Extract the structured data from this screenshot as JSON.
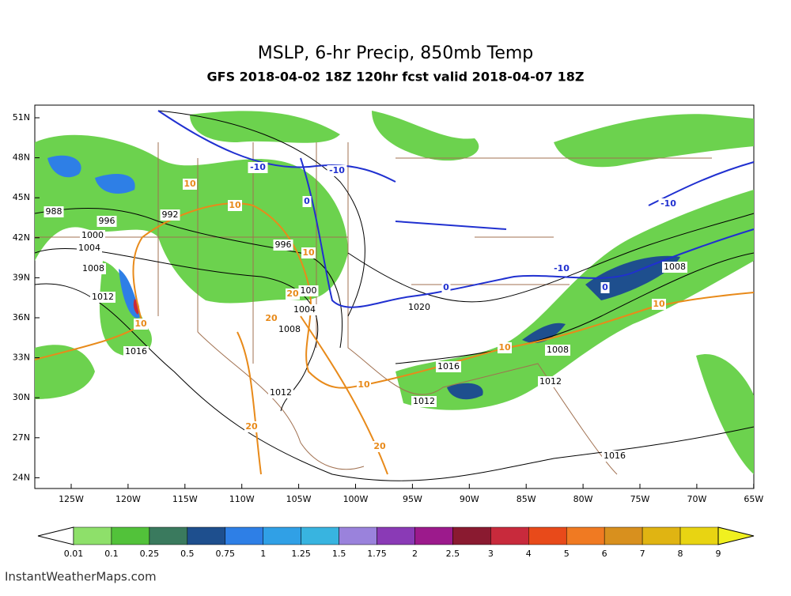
{
  "header": {
    "title": "MSLP, 6-hr Precip, 850mb Temp",
    "subtitle": "GFS 2018-04-02 18Z 120hr fcst valid 2018-04-07 18Z"
  },
  "map": {
    "lat_labels": [
      "51N",
      "48N",
      "45N",
      "42N",
      "39N",
      "36N",
      "33N",
      "30N",
      "27N",
      "24N"
    ],
    "lon_labels": [
      "125W",
      "120W",
      "115W",
      "110W",
      "105W",
      "100W",
      "95W",
      "90W",
      "85W",
      "80W",
      "75W",
      "70W",
      "65W"
    ],
    "contour_labels": [
      {
        "text": "988",
        "color": "#000000"
      },
      {
        "text": "996",
        "color": "#000000"
      },
      {
        "text": "992",
        "color": "#000000"
      },
      {
        "text": "1000",
        "color": "#000000"
      },
      {
        "text": "1004",
        "color": "#000000"
      },
      {
        "text": "1008",
        "color": "#000000"
      },
      {
        "text": "1012",
        "color": "#000000"
      },
      {
        "text": "1016",
        "color": "#000000"
      },
      {
        "text": "996",
        "color": "#000000"
      },
      {
        "text": "1004",
        "color": "#000000"
      },
      {
        "text": "1008",
        "color": "#000000"
      },
      {
        "text": "1020",
        "color": "#000000"
      },
      {
        "text": "1016",
        "color": "#000000"
      },
      {
        "text": "1012",
        "color": "#000000"
      },
      {
        "text": "1012",
        "color": "#000000"
      },
      {
        "text": "1012",
        "color": "#000000"
      },
      {
        "text": "1008",
        "color": "#000000"
      },
      {
        "text": "1008",
        "color": "#000000"
      },
      {
        "text": "1016",
        "color": "#000000"
      },
      {
        "text": "100",
        "color": "#000000"
      },
      {
        "text": "10",
        "color": "#e88a1a"
      },
      {
        "text": "10",
        "color": "#e88a1a"
      },
      {
        "text": "10",
        "color": "#e88a1a"
      },
      {
        "text": "10",
        "color": "#e88a1a"
      },
      {
        "text": "10",
        "color": "#e88a1a"
      },
      {
        "text": "10",
        "color": "#e88a1a"
      },
      {
        "text": "10",
        "color": "#e88a1a"
      },
      {
        "text": "20",
        "color": "#e88a1a"
      },
      {
        "text": "20",
        "color": "#e88a1a"
      },
      {
        "text": "20",
        "color": "#e88a1a"
      },
      {
        "text": "20",
        "color": "#e88a1a"
      },
      {
        "text": "-10",
        "color": "#2030d0"
      },
      {
        "text": "-10",
        "color": "#2030d0"
      },
      {
        "text": "-10",
        "color": "#2030d0"
      },
      {
        "text": "-10",
        "color": "#2030d0"
      },
      {
        "text": "0",
        "color": "#2030d0"
      },
      {
        "text": "0",
        "color": "#2030d0"
      },
      {
        "text": "0",
        "color": "#2030d0"
      }
    ]
  },
  "colorbar": {
    "labels": [
      "0.01",
      "0.1",
      "0.25",
      "0.5",
      "0.75",
      "1",
      "1.25",
      "1.5",
      "1.75",
      "2",
      "2.5",
      "3",
      "4",
      "5",
      "6",
      "7",
      "8",
      "9"
    ],
    "colors": [
      "#8ee06a",
      "#52c23a",
      "#3a7a5e",
      "#1e4f8e",
      "#2e7fe6",
      "#30a0e6",
      "#38b4e0",
      "#9a82dc",
      "#8a3ab6",
      "#9c1a8c",
      "#8a1a30",
      "#c82a3c",
      "#e84a1a",
      "#f07a22",
      "#d8901e",
      "#e0b412",
      "#e8d412",
      "#f0f020"
    ]
  },
  "footer": "InstantWeatherMaps.com"
}
